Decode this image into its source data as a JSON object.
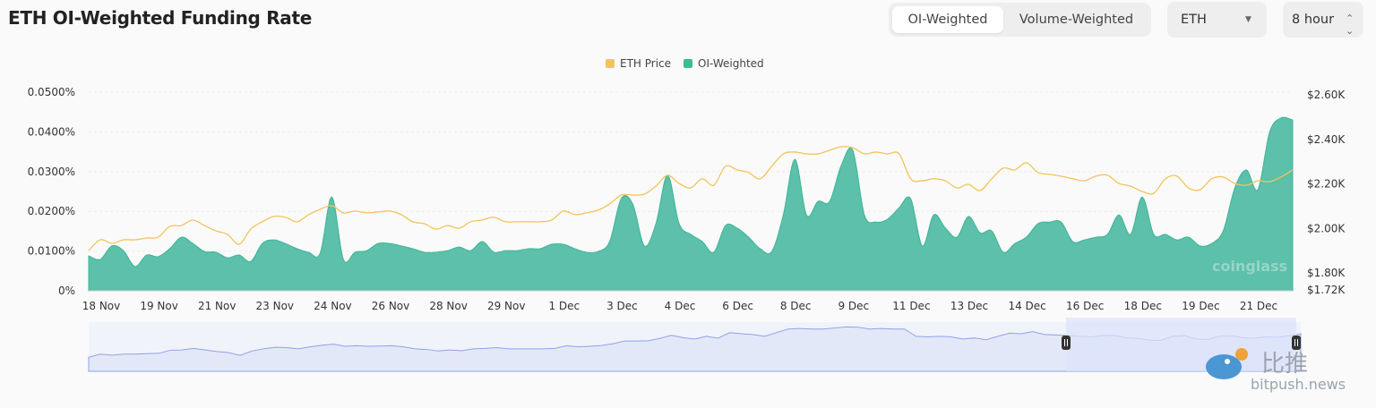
{
  "header": {
    "title": "ETH OI-Weighted Funding Rate"
  },
  "controls": {
    "tabs": [
      {
        "label": "OI-Weighted",
        "active": true
      },
      {
        "label": "Volume-Weighted",
        "active": false
      }
    ],
    "coin_select": {
      "value": "ETH",
      "icon": "caret-down-icon"
    },
    "interval_select": {
      "value": "8 hour",
      "icon": "up-down-chevron-icon"
    }
  },
  "watermarks": {
    "coinglass": "coinglass",
    "bitpush_cn": "比推",
    "bitpush": "bitpush.news"
  },
  "chart_data": {
    "type": "area",
    "title": "ETH OI-Weighted Funding Rate",
    "legend": {
      "placement": "top-center",
      "entries": [
        "ETH Price",
        "OI-Weighted"
      ]
    },
    "colors": {
      "price": "#f3c35c",
      "funding": "#5cc0aa",
      "navigator": "#8fa3e6",
      "navigator_selected": "#dbe3fb"
    },
    "x_ticks": [
      "18 Nov",
      "19 Nov",
      "21 Nov",
      "23 Nov",
      "24 Nov",
      "26 Nov",
      "28 Nov",
      "29 Nov",
      "1 Dec",
      "3 Dec",
      "4 Dec",
      "6 Dec",
      "8 Dec",
      "9 Dec",
      "11 Dec",
      "13 Dec",
      "14 Dec",
      "16 Dec",
      "18 Dec",
      "19 Dec",
      "21 Dec"
    ],
    "interval": "8 hour",
    "y_left": {
      "ticks": [
        "0%",
        "0.0100%",
        "0.0200%",
        "0.0300%",
        "0.0400%",
        "0.0500%"
      ],
      "range": [
        0,
        0.05
      ],
      "unit": "%"
    },
    "y_right": {
      "ticks": [
        "$1.72K",
        "$1.80K",
        "$2.00K",
        "$2.20K",
        "$2.40K",
        "$2.60K"
      ],
      "range": [
        1720,
        2600
      ]
    },
    "grid": true,
    "series": [
      {
        "name": "OI-Weighted",
        "axis": "left",
        "values": [
          0.0088,
          0.0079,
          0.0113,
          0.0101,
          0.0061,
          0.009,
          0.0086,
          0.0106,
          0.0135,
          0.0119,
          0.0099,
          0.0097,
          0.0083,
          0.009,
          0.0074,
          0.0119,
          0.0128,
          0.0119,
          0.0106,
          0.0097,
          0.0095,
          0.0236,
          0.0079,
          0.0097,
          0.0101,
          0.0119,
          0.0119,
          0.0113,
          0.0106,
          0.0097,
          0.0097,
          0.0101,
          0.011,
          0.0101,
          0.0124,
          0.0097,
          0.0101,
          0.0101,
          0.0106,
          0.0106,
          0.0117,
          0.0117,
          0.0106,
          0.0097,
          0.0099,
          0.0124,
          0.0232,
          0.0218,
          0.0113,
          0.0169,
          0.0291,
          0.0169,
          0.0142,
          0.0124,
          0.0097,
          0.0164,
          0.0158,
          0.0135,
          0.0106,
          0.0099,
          0.0191,
          0.0331,
          0.0191,
          0.0225,
          0.0225,
          0.0315,
          0.0354,
          0.0191,
          0.0173,
          0.018,
          0.0209,
          0.0232,
          0.0113,
          0.0191,
          0.0158,
          0.0135,
          0.0187,
          0.0146,
          0.0151,
          0.0097,
          0.0119,
          0.0135,
          0.0169,
          0.0173,
          0.0173,
          0.0124,
          0.0128,
          0.0135,
          0.0142,
          0.0191,
          0.0142,
          0.0236,
          0.0142,
          0.0142,
          0.0128,
          0.0135,
          0.0113,
          0.0119,
          0.0151,
          0.0259,
          0.0304,
          0.0255,
          0.0399,
          0.0435,
          0.043
        ]
      },
      {
        "name": "ETH Price",
        "axis": "right",
        "values": [
          1901,
          1949,
          1933,
          1949,
          1949,
          1957,
          1961,
          2009,
          2013,
          2038,
          2013,
          1989,
          1973,
          1929,
          1997,
          2030,
          2054,
          2050,
          2030,
          2062,
          2086,
          2102,
          2070,
          2078,
          2070,
          2074,
          2078,
          2062,
          2030,
          2021,
          1997,
          2013,
          2001,
          2030,
          2038,
          2050,
          2030,
          2030,
          2030,
          2030,
          2038,
          2078,
          2062,
          2070,
          2082,
          2110,
          2150,
          2150,
          2154,
          2190,
          2239,
          2202,
          2182,
          2223,
          2194,
          2279,
          2263,
          2251,
          2223,
          2279,
          2335,
          2343,
          2335,
          2335,
          2351,
          2367,
          2363,
          2335,
          2343,
          2335,
          2335,
          2223,
          2214,
          2223,
          2214,
          2182,
          2198,
          2170,
          2223,
          2271,
          2263,
          2295,
          2251,
          2243,
          2235,
          2223,
          2214,
          2235,
          2239,
          2202,
          2190,
          2166,
          2158,
          2223,
          2235,
          2182,
          2174,
          2223,
          2231,
          2202,
          2194,
          2214,
          2210,
          2231,
          2263
        ]
      }
    ],
    "navigator": {
      "selected_range": [
        "16 Dec",
        "22 Dec"
      ]
    }
  }
}
